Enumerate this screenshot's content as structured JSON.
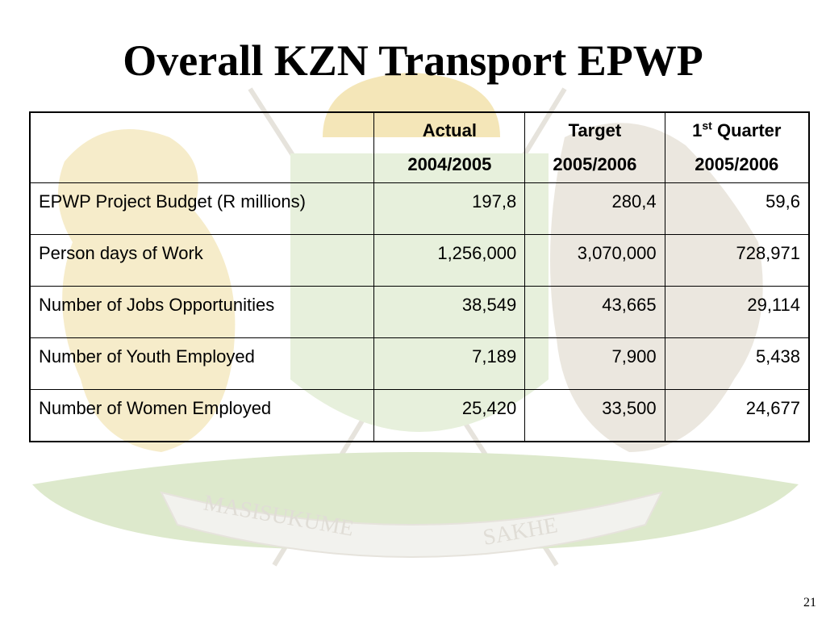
{
  "slide": {
    "title": "Overall KZN Transport EPWP",
    "page_number": "21"
  },
  "watermark": {
    "motto_left": "MASISUKUME",
    "motto_right": "SAKHE"
  },
  "table": {
    "headers": {
      "actual_line1": "Actual",
      "actual_line2": "2004/2005",
      "target_line1": "Target",
      "target_line2": "2005/2006",
      "q1_number": "1",
      "q1_superscript": "st",
      "q1_word": "Quarter",
      "q1_line2": "2005/2006"
    },
    "rows": [
      {
        "label": "EPWP Project Budget (R millions)",
        "actual": "197,8",
        "target": "280,4",
        "q1": "59,6"
      },
      {
        "label": "Person days of Work",
        "actual": "1,256,000",
        "target": "3,070,000",
        "q1": "728,971"
      },
      {
        "label": "Number of Jobs Opportunities",
        "actual": "38,549",
        "target": "43,665",
        "q1": "29,114"
      },
      {
        "label": "Number of Youth Employed",
        "actual": "7,189",
        "target": "7,900",
        "q1": "5,438"
      },
      {
        "label": "Number of Women Employed",
        "actual": "25,420",
        "target": "33,500",
        "q1": "24,677"
      }
    ]
  },
  "colors": {
    "watermark_gold": "#f4e6b8",
    "watermark_green": "#dde9cc",
    "watermark_grey": "#e6e3dc"
  }
}
